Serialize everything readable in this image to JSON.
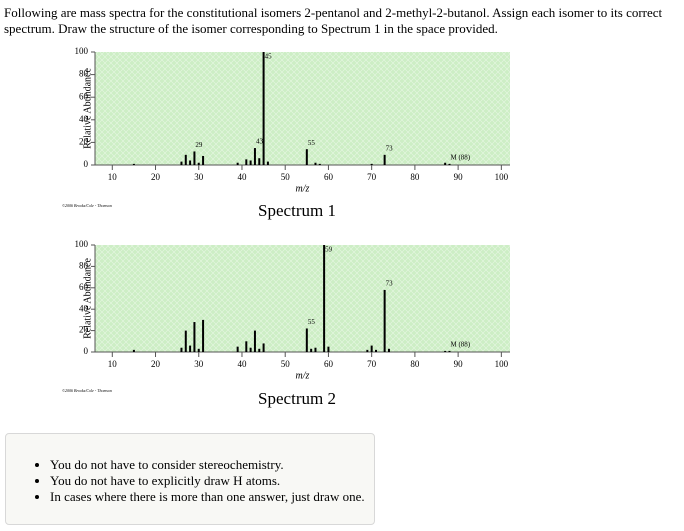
{
  "question": "Following are mass spectra for the constitutional isomers 2-pentanol and 2-methyl-2-butanol. Assign each isomer to its correct spectrum. Draw the structure of the isomer corresponding to Spectrum 1 in the space provided.",
  "chart_data": [
    {
      "type": "stick",
      "title": "Spectrum 1",
      "credit": "©2006 Brooks/Cole - Thomson",
      "x_label": "m/z",
      "y_label": "Relative Abundance",
      "x": [
        15,
        26,
        27,
        28,
        29,
        30,
        31,
        39,
        41,
        42,
        43,
        44,
        45,
        46,
        55,
        57,
        58,
        70,
        73,
        87,
        88
      ],
      "values": [
        1,
        3,
        9,
        4,
        12,
        2,
        8,
        2,
        5,
        4,
        15,
        6,
        100,
        3,
        14,
        2,
        1,
        1,
        9,
        2,
        1
      ],
      "color": "#000000",
      "background": "#cdeec5",
      "xlim": [
        6,
        102
      ],
      "xticks": [
        10,
        20,
        30,
        40,
        50,
        60,
        70,
        80,
        90,
        100
      ],
      "ylim": [
        0,
        100
      ],
      "yticks": [
        0,
        20,
        40,
        60,
        80,
        100
      ],
      "annotations": [
        {
          "x": 29,
          "label": "29"
        },
        {
          "x": 43,
          "label": "43"
        },
        {
          "x": 45,
          "label": "45"
        },
        {
          "x": 55,
          "label": "55"
        },
        {
          "x": 73,
          "label": "73"
        },
        {
          "x": 88,
          "label": "M (88)"
        }
      ]
    },
    {
      "type": "stick",
      "title": "Spectrum 2",
      "credit": "©2006 Brooks/Cole - Thomson",
      "x_label": "m/z",
      "y_label": "Relative Abundance",
      "x": [
        15,
        26,
        27,
        28,
        29,
        30,
        31,
        39,
        41,
        42,
        43,
        44,
        45,
        55,
        56,
        57,
        59,
        60,
        69,
        70,
        71,
        73,
        74,
        87,
        88
      ],
      "values": [
        2,
        4,
        20,
        6,
        28,
        3,
        30,
        5,
        10,
        4,
        20,
        3,
        8,
        22,
        3,
        4,
        100,
        5,
        2,
        6,
        2,
        58,
        3,
        1,
        1
      ],
      "color": "#000000",
      "background": "#cdeec5",
      "xlim": [
        6,
        102
      ],
      "xticks": [
        10,
        20,
        30,
        40,
        50,
        60,
        70,
        80,
        90,
        100
      ],
      "ylim": [
        0,
        100
      ],
      "yticks": [
        0,
        20,
        40,
        60,
        80,
        100
      ],
      "annotations": [
        {
          "x": 55,
          "label": "55"
        },
        {
          "x": 59,
          "label": "59"
        },
        {
          "x": 73,
          "label": "73"
        },
        {
          "x": 88,
          "label": "M (88)"
        }
      ]
    }
  ],
  "notes": [
    "You do not have to consider stereochemistry.",
    "You do not have to explicitly draw H atoms.",
    "In cases where there is more than one answer, just draw one."
  ]
}
